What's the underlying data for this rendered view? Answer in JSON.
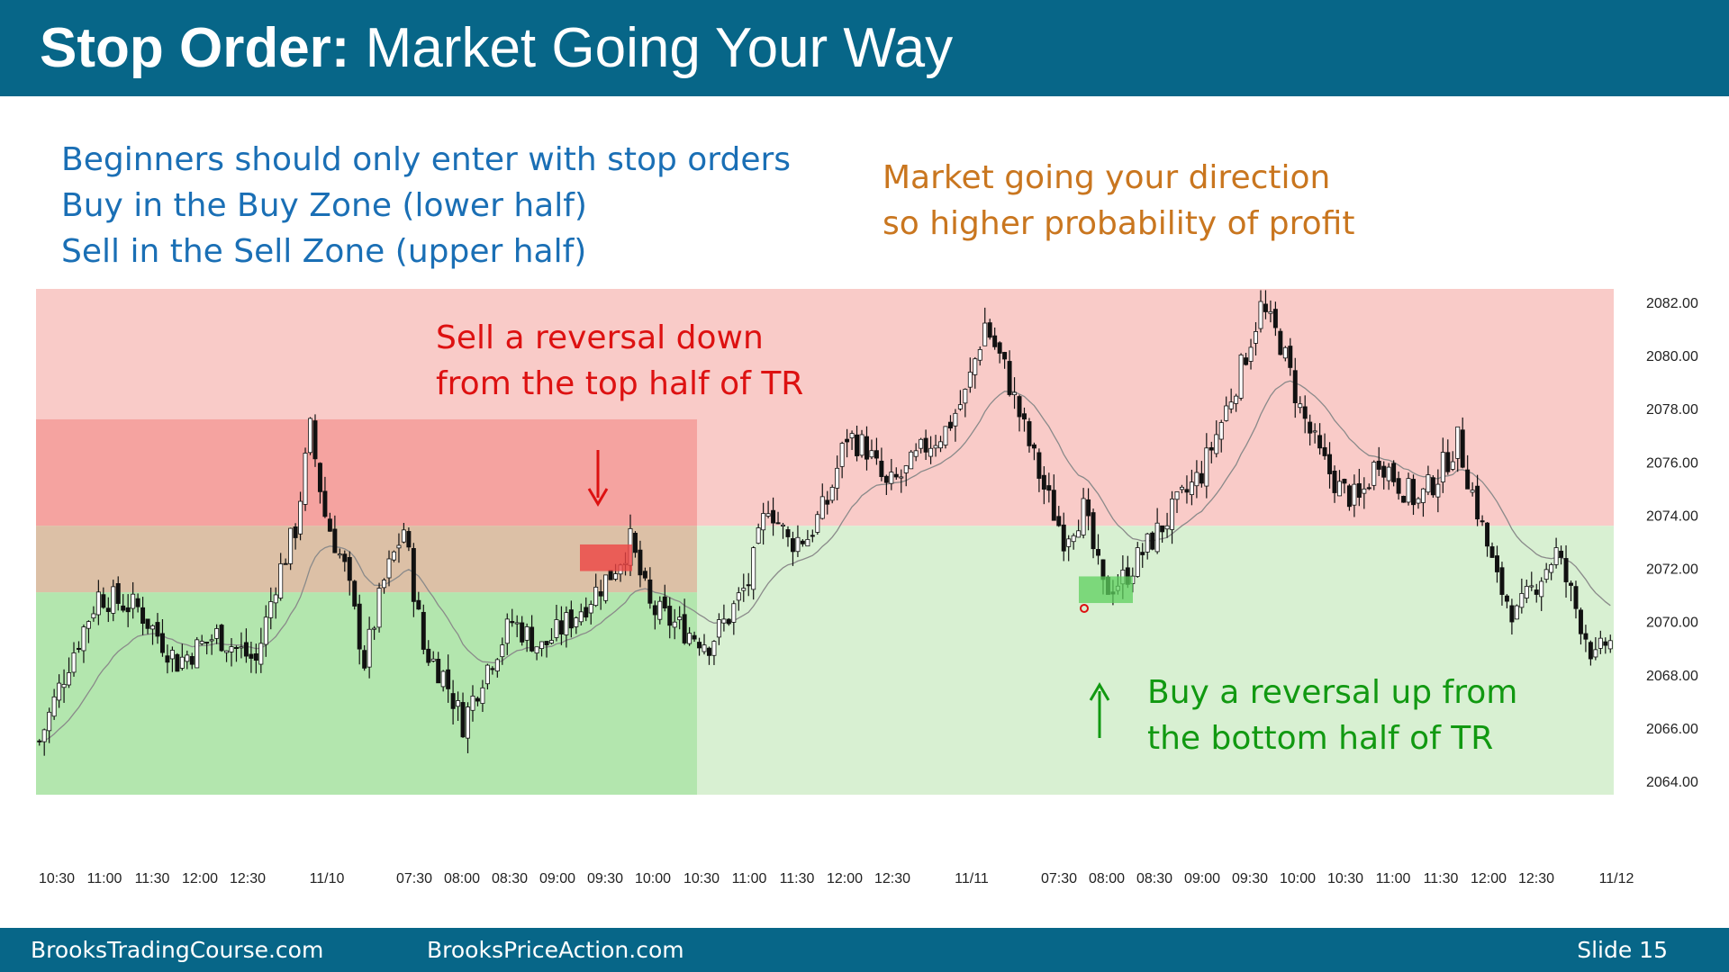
{
  "slide": {
    "title_bold": "Stop Order:",
    "title_rest": " Market Going Your Way",
    "notes_left": [
      "Beginners should only enter with stop orders",
      "Buy in the Buy Zone (lower half)",
      "Sell in the Sell Zone (upper half)"
    ],
    "notes_right": [
      "Market going your direction",
      "so higher probability of profit"
    ],
    "footer_left": "BrooksTradingCourse.com",
    "footer_center": "BrooksPriceAction.com",
    "footer_right": "Slide  15"
  },
  "colors": {
    "header_bg": "#076688",
    "sell_zone": "#f9cbc8",
    "buy_zone": "#d8f0d2",
    "day1_upper": "#f5a3a0",
    "day1_middle": "#dcc0a6",
    "day1_lower": "#b3e6ae",
    "sell_annotation": "#dd1111",
    "buy_annotation": "#119911",
    "ema": "#8a8a8a",
    "bull_candle": "#ffffff",
    "bear_candle": "#111111"
  },
  "chart_data": {
    "type": "candlestick",
    "ylim": [
      2063.5,
      2082.5
    ],
    "y_ticks": [
      "2082.00",
      "2080.00",
      "2078.00",
      "2076.00",
      "2074.00",
      "2072.00",
      "2070.00",
      "2068.00",
      "2066.00",
      "2064.00"
    ],
    "x_ticks": [
      "10:30",
      "11:00",
      "11:30",
      "12:00",
      "12:30",
      "11/10",
      "07:30",
      "08:00",
      "08:30",
      "09:00",
      "09:30",
      "10:00",
      "10:30",
      "11:00",
      "11:30",
      "12:00",
      "12:30",
      "11/11",
      "07:30",
      "08:00",
      "08:30",
      "09:00",
      "09:30",
      "10:00",
      "10:30",
      "11:00",
      "11:30",
      "12:00",
      "12:30",
      "11/12"
    ],
    "trading_range": {
      "top": 2082.5,
      "middle": 2073.6,
      "bottom": 2063.5
    },
    "day1_zones": {
      "top": 2077.6,
      "upper_split": 2073.6,
      "lower_split": 2071.1,
      "bottom": 2063.5
    },
    "annotations": [
      {
        "lines": [
          "Sell a reversal down",
          "from the top half of TR"
        ],
        "kind": "sell",
        "arrow": "down",
        "price": 2072.4
      },
      {
        "lines": [
          "Buy a reversal up from",
          "the bottom half of TR"
        ],
        "kind": "buy",
        "arrow": "up",
        "price": 2071.2
      }
    ],
    "waypoints": [
      [
        0,
        2065.5
      ],
      [
        6,
        2068.5
      ],
      [
        12,
        2071
      ],
      [
        20,
        2070.5
      ],
      [
        28,
        2068.5
      ],
      [
        36,
        2069.5
      ],
      [
        44,
        2068.5
      ],
      [
        48,
        2071.5
      ],
      [
        52,
        2073.5
      ],
      [
        55,
        2077.2
      ],
      [
        58,
        2074
      ],
      [
        62,
        2072
      ],
      [
        66,
        2068.5
      ],
      [
        70,
        2071.5
      ],
      [
        74,
        2073.5
      ],
      [
        78,
        2069
      ],
      [
        82,
        2068
      ],
      [
        86,
        2066.2
      ],
      [
        90,
        2068
      ],
      [
        96,
        2070
      ],
      [
        102,
        2069
      ],
      [
        110,
        2070.5
      ],
      [
        116,
        2071.8
      ],
      [
        120,
        2073
      ],
      [
        124,
        2070.5
      ],
      [
        130,
        2069.8
      ],
      [
        136,
        2069.2
      ],
      [
        140,
        2070.2
      ],
      [
        144,
        2071.5
      ],
      [
        148,
        2074.5
      ],
      [
        152,
        2073
      ],
      [
        156,
        2073.2
      ],
      [
        160,
        2074.5
      ],
      [
        164,
        2077
      ],
      [
        168,
        2076.5
      ],
      [
        172,
        2075
      ],
      [
        176,
        2075.6
      ],
      [
        180,
        2076.6
      ],
      [
        184,
        2077.2
      ],
      [
        188,
        2078.5
      ],
      [
        192,
        2081.2
      ],
      [
        196,
        2079.5
      ],
      [
        200,
        2077.2
      ],
      [
        204,
        2075
      ],
      [
        208,
        2073.2
      ],
      [
        212,
        2074.2
      ],
      [
        216,
        2071.2
      ],
      [
        220,
        2071.6
      ],
      [
        224,
        2072.6
      ],
      [
        228,
        2073.6
      ],
      [
        232,
        2074.6
      ],
      [
        236,
        2075.6
      ],
      [
        240,
        2077.5
      ],
      [
        244,
        2079.5
      ],
      [
        248,
        2081.8
      ],
      [
        252,
        2080.5
      ],
      [
        256,
        2078
      ],
      [
        260,
        2076.2
      ],
      [
        264,
        2075
      ],
      [
        268,
        2074.5
      ],
      [
        272,
        2076.2
      ],
      [
        276,
        2075.2
      ],
      [
        280,
        2074.5
      ],
      [
        284,
        2075.5
      ],
      [
        288,
        2076.8
      ],
      [
        292,
        2074.2
      ],
      [
        296,
        2071.5
      ],
      [
        300,
        2070.2
      ],
      [
        304,
        2071.5
      ],
      [
        308,
        2072.6
      ],
      [
        312,
        2070.5
      ],
      [
        316,
        2068.5
      ],
      [
        318,
        2069.2
      ]
    ]
  }
}
